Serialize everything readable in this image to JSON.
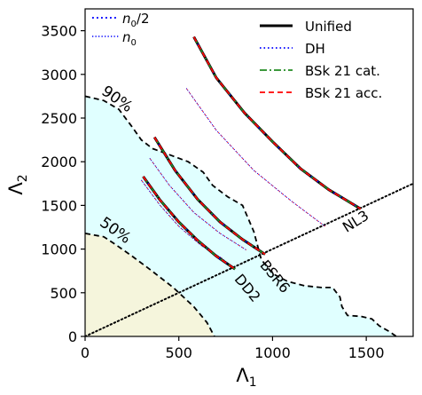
{
  "chart_data": {
    "type": "line",
    "xlabel": "Λ",
    "xlabel_sub": "1",
    "ylabel": "Λ",
    "ylabel_sub": "2",
    "xlim": [
      0,
      1750
    ],
    "ylim": [
      0,
      3750
    ],
    "xticks": [
      0,
      500,
      1000,
      1500
    ],
    "yticks": [
      0,
      500,
      1000,
      1500,
      2000,
      2500,
      3000,
      3500
    ],
    "legend_left": {
      "placement": "upper-left",
      "entries": [
        {
          "label_main": "n",
          "label_sub": "0",
          "label_tail": "/2",
          "style": "dotted",
          "color": "#0000ff",
          "width": 1.6
        },
        {
          "label_main": "n",
          "label_sub": "0",
          "label_tail": "",
          "style": "dotted",
          "color": "#0000ff",
          "width": 1.0
        }
      ]
    },
    "legend_right": {
      "placement": "upper-right",
      "entries": [
        {
          "label": "Unified",
          "style": "solid",
          "color": "#000000",
          "width": 3
        },
        {
          "label": "DH",
          "style": "dotted",
          "color": "#0000ff",
          "width": 1.8
        },
        {
          "label": "BSk 21 cat.",
          "style": "dashdot",
          "color": "#228b22",
          "width": 1.8
        },
        {
          "label": "BSk 21 acc.",
          "style": "dashed",
          "color": "#ff0000",
          "width": 1.8
        }
      ]
    },
    "regions": [
      {
        "name": "90% credible region",
        "label": "90%",
        "fill": "#e0ffff",
        "points": [
          [
            0,
            2750
          ],
          [
            100,
            2700
          ],
          [
            180,
            2600
          ],
          [
            250,
            2400
          ],
          [
            300,
            2250
          ],
          [
            360,
            2150
          ],
          [
            450,
            2080
          ],
          [
            550,
            2000
          ],
          [
            630,
            1880
          ],
          [
            680,
            1730
          ],
          [
            760,
            1600
          ],
          [
            840,
            1500
          ],
          [
            900,
            1200
          ],
          [
            940,
            880
          ],
          [
            1000,
            720
          ],
          [
            1080,
            630
          ],
          [
            1170,
            580
          ],
          [
            1260,
            560
          ],
          [
            1320,
            560
          ],
          [
            1360,
            450
          ],
          [
            1370,
            340
          ],
          [
            1400,
            240
          ],
          [
            1470,
            230
          ],
          [
            1530,
            200
          ],
          [
            1570,
            120
          ],
          [
            1620,
            60
          ],
          [
            1660,
            0
          ],
          [
            0,
            0
          ]
        ]
      },
      {
        "name": "50% credible region",
        "label": "50%",
        "fill": "#f5f5dc",
        "points": [
          [
            0,
            1180
          ],
          [
            100,
            1140
          ],
          [
            150,
            1070
          ],
          [
            250,
            920
          ],
          [
            350,
            760
          ],
          [
            470,
            560
          ],
          [
            580,
            340
          ],
          [
            650,
            160
          ],
          [
            690,
            0
          ],
          [
            0,
            0
          ]
        ]
      }
    ],
    "diagonal": [
      [
        0,
        0
      ],
      [
        1750,
        1750
      ]
    ],
    "series": [
      {
        "name": "NL3",
        "label": "NL3",
        "x": [
          580,
          700,
          850,
          1000,
          1150,
          1300,
          1470
        ],
        "y": [
          3430,
          2960,
          2560,
          2230,
          1920,
          1680,
          1460
        ]
      },
      {
        "name": "BSR6",
        "label": "BSR6",
        "x": [
          370,
          480,
          600,
          720,
          840,
          960
        ],
        "y": [
          2280,
          1900,
          1570,
          1310,
          1110,
          940
        ]
      },
      {
        "name": "DD2",
        "label": "DD2",
        "x": [
          310,
          400,
          500,
          600,
          700,
          800
        ],
        "y": [
          1830,
          1560,
          1310,
          1100,
          920,
          770
        ]
      }
    ],
    "thin_curves": [
      {
        "x": [
          540,
          700,
          900,
          1100,
          1280
        ],
        "y": [
          2840,
          2360,
          1900,
          1550,
          1260
        ]
      },
      {
        "x": [
          345,
          450,
          580,
          720,
          860
        ],
        "y": [
          2040,
          1730,
          1420,
          1180,
          990
        ]
      },
      {
        "x": [
          300,
          400,
          500,
          620,
          740
        ],
        "y": [
          1790,
          1500,
          1260,
          1040,
          880
        ]
      }
    ]
  }
}
